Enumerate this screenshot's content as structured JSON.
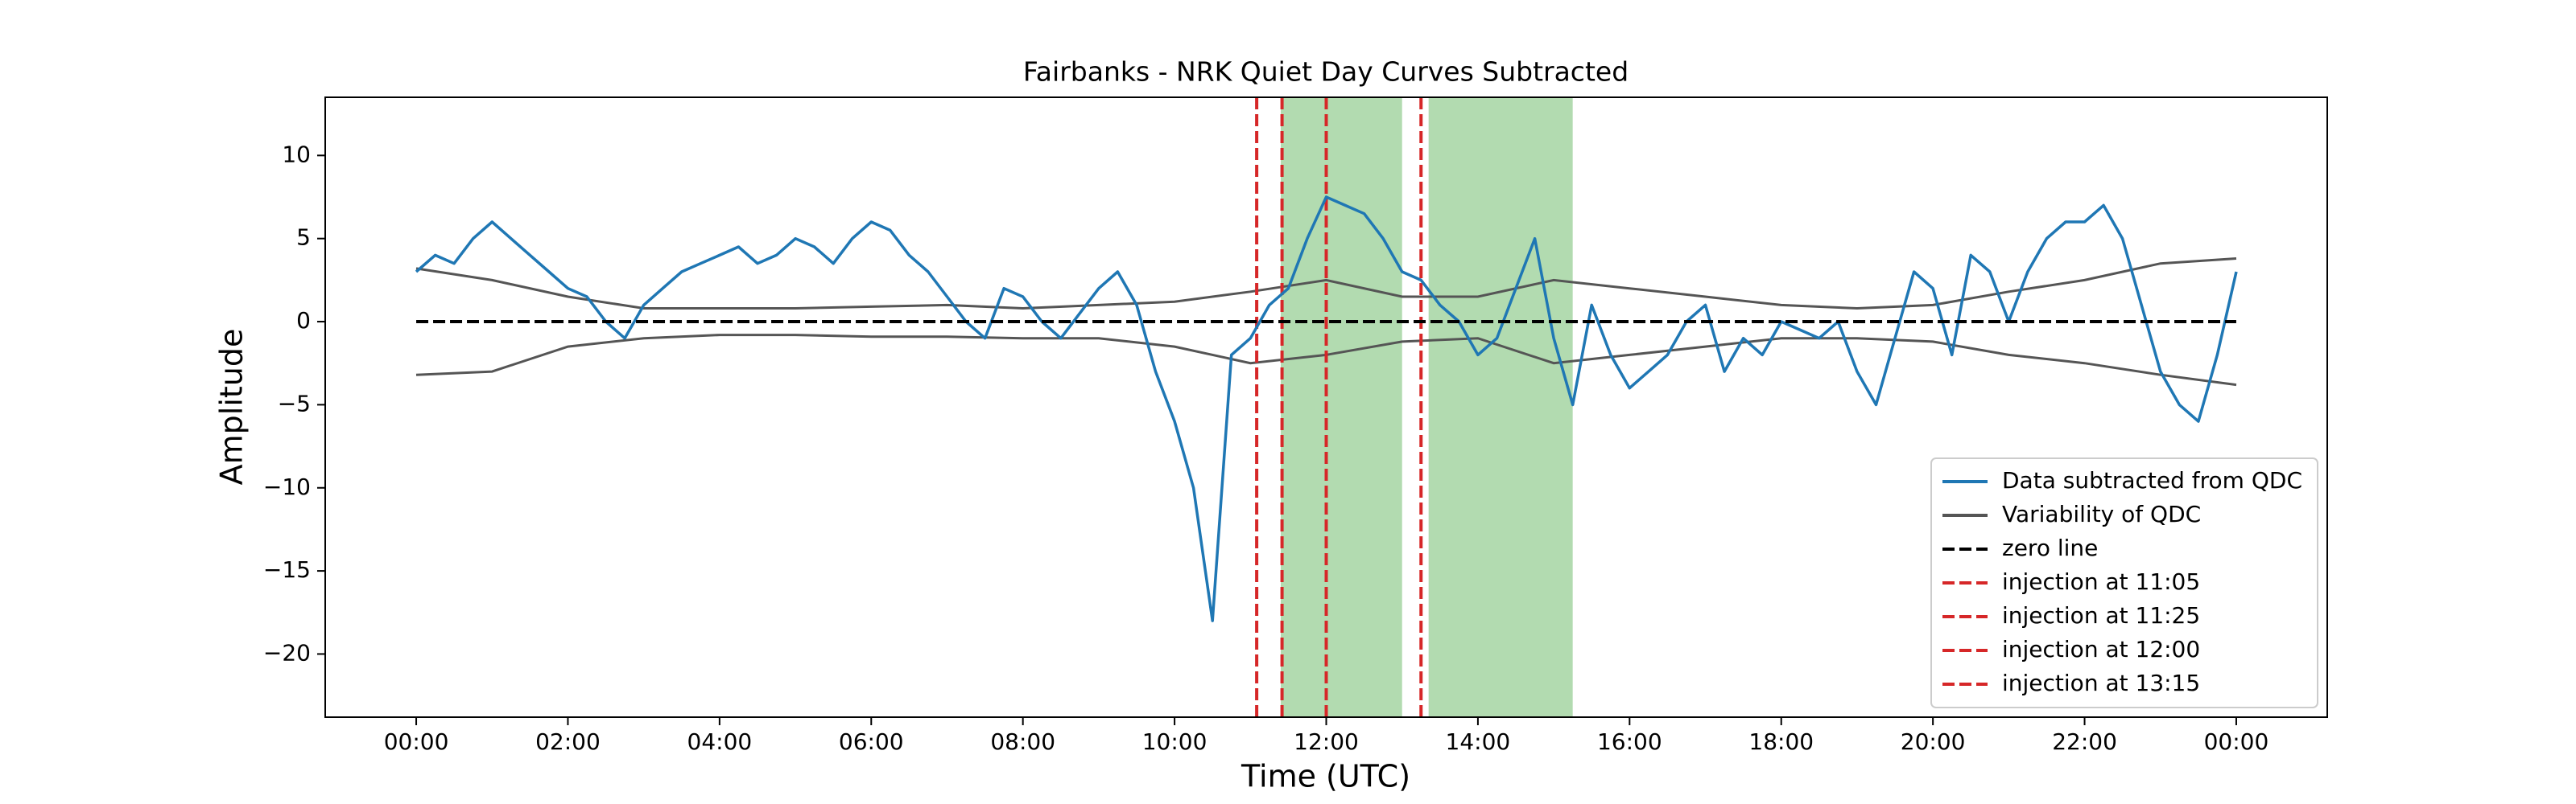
{
  "chart_data": {
    "type": "line",
    "title": "Fairbanks - NRK Quiet Day Curves Subtracted",
    "xlabel": "Time (UTC)",
    "ylabel": "Amplitude",
    "xlim": [
      -1.2,
      25.2
    ],
    "ylim": [
      -23.8,
      13.5
    ],
    "xticks": [
      {
        "value": 0,
        "label": "00:00"
      },
      {
        "value": 2,
        "label": "02:00"
      },
      {
        "value": 4,
        "label": "04:00"
      },
      {
        "value": 6,
        "label": "06:00"
      },
      {
        "value": 8,
        "label": "08:00"
      },
      {
        "value": 10,
        "label": "10:00"
      },
      {
        "value": 12,
        "label": "12:00"
      },
      {
        "value": 14,
        "label": "14:00"
      },
      {
        "value": 16,
        "label": "16:00"
      },
      {
        "value": 18,
        "label": "18:00"
      },
      {
        "value": 20,
        "label": "20:00"
      },
      {
        "value": 22,
        "label": "22:00"
      },
      {
        "value": 24,
        "label": "00:00"
      }
    ],
    "yticks": [
      {
        "value": -20,
        "label": "−20"
      },
      {
        "value": -15,
        "label": "−15"
      },
      {
        "value": -10,
        "label": "−10"
      },
      {
        "value": -5,
        "label": "−5"
      },
      0,
      5,
      10
    ],
    "legend": "lower right",
    "spans": [
      [
        11.4,
        13.0
      ],
      [
        13.35,
        15.25
      ]
    ],
    "span_color": "#b2dbb0",
    "series": [
      {
        "name": "Data subtracted from QDC",
        "color": "#1f77b4",
        "x": [
          0,
          0.25,
          0.5,
          0.75,
          1,
          1.25,
          1.5,
          1.75,
          2,
          2.25,
          2.5,
          2.75,
          3,
          3.25,
          3.5,
          3.75,
          4,
          4.25,
          4.5,
          4.75,
          5,
          5.25,
          5.5,
          5.75,
          6,
          6.25,
          6.5,
          6.75,
          7,
          7.25,
          7.5,
          7.75,
          8,
          8.25,
          8.5,
          8.75,
          9,
          9.25,
          9.5,
          9.75,
          10,
          10.25,
          10.5,
          10.75,
          11,
          11.25,
          11.5,
          11.75,
          12,
          12.25,
          12.5,
          12.75,
          13,
          13.25,
          13.5,
          13.75,
          14,
          14.25,
          14.5,
          14.75,
          15,
          15.25,
          15.5,
          15.75,
          16,
          16.25,
          16.5,
          16.75,
          17,
          17.25,
          17.5,
          17.75,
          18,
          18.25,
          18.5,
          18.75,
          19,
          19.25,
          19.5,
          19.75,
          20,
          20.25,
          20.5,
          20.75,
          21,
          21.25,
          21.5,
          21.75,
          22,
          22.25,
          22.5,
          22.75,
          23,
          23.25,
          23.5,
          23.75,
          24
        ],
        "values": [
          3,
          4,
          3.5,
          5,
          6,
          5,
          4,
          3,
          2,
          1.5,
          0,
          -1,
          1,
          2,
          3,
          3.5,
          4,
          4.5,
          3.5,
          4,
          5,
          4.5,
          3.5,
          5,
          6,
          5.5,
          4,
          3,
          1.5,
          0,
          -1,
          2,
          1.5,
          0,
          -1,
          0.5,
          2,
          3,
          1,
          -3,
          -6,
          -10,
          -18,
          -2,
          -1,
          1,
          2,
          5,
          7.5,
          7,
          6.5,
          5,
          3,
          2.5,
          1,
          0,
          -2,
          -1,
          2,
          5,
          -1,
          -5,
          1,
          -2,
          -4,
          -3,
          -2,
          0,
          1,
          -3,
          -1,
          -2,
          0,
          -0.5,
          -1,
          0,
          -3,
          -5,
          -1,
          3,
          2,
          -2,
          4,
          3,
          0,
          3,
          5,
          6,
          6,
          7,
          5,
          1,
          -3,
          -5,
          -6,
          -2,
          3
        ]
      },
      {
        "name": "Variability of QDC",
        "color": "#555555",
        "x": [
          0,
          1,
          2,
          3,
          4,
          5,
          6,
          7,
          8,
          9,
          10,
          11,
          12,
          13,
          14,
          15,
          16,
          17,
          18,
          19,
          20,
          21,
          22,
          23,
          24
        ],
        "upper": [
          3.2,
          2.5,
          1.5,
          0.8,
          0.8,
          0.8,
          0.9,
          1.0,
          0.8,
          1.0,
          1.2,
          1.8,
          2.5,
          1.5,
          1.5,
          2.5,
          2.0,
          1.5,
          1.0,
          0.8,
          1.0,
          1.8,
          2.5,
          3.5,
          3.8
        ],
        "lower": [
          -3.2,
          -3.0,
          -1.5,
          -1.0,
          -0.8,
          -0.8,
          -0.9,
          -0.9,
          -1.0,
          -1.0,
          -1.5,
          -2.5,
          -2.0,
          -1.2,
          -1.0,
          -2.5,
          -2.0,
          -1.5,
          -1.0,
          -1.0,
          -1.2,
          -2.0,
          -2.5,
          -3.2,
          -3.8
        ]
      }
    ],
    "hline": {
      "name": "zero line",
      "color": "#000000",
      "y": 0,
      "xrange": [
        0,
        24
      ]
    },
    "vlines": [
      {
        "name": "injection at 11:05",
        "color": "#d62728",
        "x": 11.083
      },
      {
        "name": "injection at 11:25",
        "color": "#d62728",
        "x": 11.417
      },
      {
        "name": "injection at 12:00",
        "color": "#d62728",
        "x": 12.0
      },
      {
        "name": "injection at 13:15",
        "color": "#d62728",
        "x": 13.25
      }
    ]
  }
}
